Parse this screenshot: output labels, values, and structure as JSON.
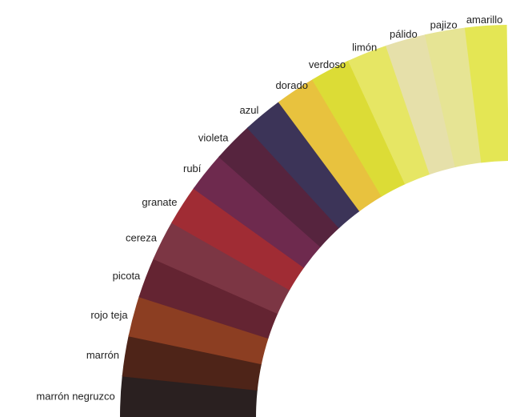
{
  "segments": [
    {
      "label": "marrón negruzco",
      "color": "#2a2020"
    },
    {
      "label": "marrón",
      "color": "#4e2418"
    },
    {
      "label": "rojo teja",
      "color": "#8c3e22"
    },
    {
      "label": "picota",
      "color": "#642432"
    },
    {
      "label": "cereza",
      "color": "#7c3644"
    },
    {
      "label": "granate",
      "color": "#a02c34"
    },
    {
      "label": "rubí",
      "color": "#6e2a4e"
    },
    {
      "label": "violeta",
      "color": "#56243e"
    },
    {
      "label": "azul",
      "color": "#3c3458"
    },
    {
      "label": "dorado",
      "color": "#e8c23e"
    },
    {
      "label": "verdoso",
      "color": "#dcdc36"
    },
    {
      "label": "limón",
      "color": "#e6e664"
    },
    {
      "label": "pálido",
      "color": "#e6e0aa"
    },
    {
      "label": "pajizo",
      "color": "#e6e494"
    },
    {
      "label": "amarillo",
      "color": "#e4e654"
    }
  ]
}
